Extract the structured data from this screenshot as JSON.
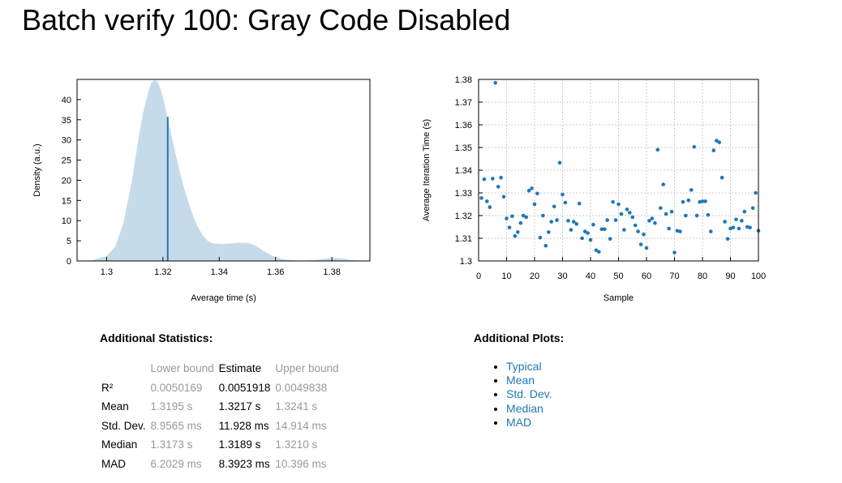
{
  "title": "Batch verify 100: Gray Code Disabled",
  "colors": {
    "accent": "#1f78b4",
    "pdf_fill": "#c6dbea",
    "grid": "#cccccc",
    "muted": "#999999"
  },
  "chart_data": [
    {
      "type": "area",
      "name": "pdf",
      "xlabel": "Average time (s)",
      "ylabel": "Density (a.u.)",
      "xlim": [
        1.2895,
        1.3935
      ],
      "ylim": [
        0,
        45
      ],
      "xticks": [
        "1.3",
        "1.32",
        "1.34",
        "1.36",
        "1.38"
      ],
      "yticks": [
        "0",
        "5",
        "10",
        "15",
        "20",
        "25",
        "30",
        "35",
        "40"
      ],
      "density": {
        "x": [
          1.2895,
          1.29,
          1.295,
          1.3,
          1.303,
          1.306,
          1.309,
          1.311,
          1.313,
          1.315,
          1.316,
          1.317,
          1.318,
          1.319,
          1.32,
          1.322,
          1.324,
          1.326,
          1.328,
          1.33,
          1.332,
          1.334,
          1.336,
          1.338,
          1.341,
          1.344,
          1.347,
          1.35,
          1.353,
          1.356,
          1.359,
          1.362,
          1.366,
          1.37,
          1.374,
          1.378,
          1.38,
          1.382,
          1.385,
          1.387,
          1.3935
        ],
        "y": [
          0,
          0.05,
          0.2,
          1.2,
          3.5,
          9.5,
          20,
          29,
          37,
          42.5,
          44.3,
          44.8,
          44.5,
          43,
          40.5,
          34.5,
          28,
          22,
          17,
          12.5,
          9,
          6.5,
          4.9,
          4.3,
          4.2,
          4.3,
          4.5,
          4.5,
          3.8,
          2.4,
          1.2,
          0.5,
          0.15,
          0.08,
          0.25,
          0.55,
          0.7,
          0.7,
          0.5,
          0.2,
          0.05
        ]
      },
      "mean": {
        "x": 1.3217,
        "y": 35.7
      }
    },
    {
      "type": "scatter",
      "name": "samples",
      "xlabel": "Sample",
      "ylabel": "Average Iteration Time (s)",
      "xlim": [
        0,
        100
      ],
      "ylim": [
        1.3,
        1.38
      ],
      "grid": true,
      "xticks": [
        "0",
        "10",
        "20",
        "30",
        "40",
        "50",
        "60",
        "70",
        "80",
        "90",
        "100"
      ],
      "yticks": [
        "1.3",
        "1.31",
        "1.32",
        "1.33",
        "1.34",
        "1.35",
        "1.36",
        "1.37",
        "1.38"
      ],
      "x": [
        1,
        2,
        3,
        4,
        5,
        6,
        7,
        8,
        9,
        10,
        11,
        12,
        13,
        14,
        15,
        16,
        17,
        18,
        19,
        20,
        21,
        22,
        23,
        24,
        25,
        26,
        27,
        28,
        29,
        30,
        31,
        32,
        33,
        34,
        35,
        36,
        37,
        38,
        39,
        40,
        41,
        42,
        43,
        44,
        45,
        46,
        47,
        48,
        49,
        50,
        51,
        52,
        53,
        54,
        55,
        56,
        57,
        58,
        59,
        60,
        61,
        62,
        63,
        64,
        65,
        66,
        67,
        68,
        69,
        70,
        71,
        72,
        73,
        74,
        75,
        76,
        77,
        78,
        79,
        80,
        81,
        82,
        83,
        84,
        85,
        86,
        87,
        88,
        89,
        90,
        91,
        92,
        93,
        94,
        95,
        96,
        97,
        98,
        99,
        100
      ],
      "y": [
        1.3277,
        1.336,
        1.3263,
        1.3237,
        1.3363,
        1.3785,
        1.3327,
        1.3367,
        1.3283,
        1.3187,
        1.3147,
        1.3197,
        1.311,
        1.3127,
        1.3167,
        1.32,
        1.3193,
        1.331,
        1.332,
        1.325,
        1.3297,
        1.3103,
        1.32,
        1.3067,
        1.3127,
        1.3173,
        1.324,
        1.318,
        1.3433,
        1.3293,
        1.3257,
        1.3177,
        1.3137,
        1.3173,
        1.3163,
        1.3253,
        1.31,
        1.313,
        1.3123,
        1.3093,
        1.316,
        1.3047,
        1.304,
        1.314,
        1.314,
        1.318,
        1.3097,
        1.326,
        1.318,
        1.325,
        1.3207,
        1.3137,
        1.3227,
        1.3213,
        1.3193,
        1.3157,
        1.313,
        1.3073,
        1.3117,
        1.3057,
        1.3177,
        1.3187,
        1.3167,
        1.349,
        1.3233,
        1.3337,
        1.3207,
        1.3143,
        1.3217,
        1.3037,
        1.3133,
        1.313,
        1.326,
        1.32,
        1.3267,
        1.3313,
        1.3503,
        1.32,
        1.326,
        1.3263,
        1.3263,
        1.3203,
        1.313,
        1.3487,
        1.353,
        1.3523,
        1.3367,
        1.3173,
        1.3097,
        1.3143,
        1.3147,
        1.3183,
        1.3143,
        1.3177,
        1.3217,
        1.315,
        1.3147,
        1.3233,
        1.33,
        1.3133
      ]
    }
  ],
  "stats": {
    "heading": "Additional Statistics:",
    "columns": [
      "",
      "Lower bound",
      "Estimate",
      "Upper bound"
    ],
    "rows": [
      {
        "label": "R²",
        "lower": "0.0050169",
        "estimate": "0.0051918",
        "upper": "0.0049838"
      },
      {
        "label": "Mean",
        "lower": "1.3195 s",
        "estimate": "1.3217 s",
        "upper": "1.3241 s"
      },
      {
        "label": "Std. Dev.",
        "lower": "8.9565 ms",
        "estimate": "11.928 ms",
        "upper": "14.914 ms"
      },
      {
        "label": "Median",
        "lower": "1.3173 s",
        "estimate": "1.3189 s",
        "upper": "1.3210 s"
      },
      {
        "label": "MAD",
        "lower": "6.2029 ms",
        "estimate": "8.3923 ms",
        "upper": "10.396 ms"
      }
    ]
  },
  "plots": {
    "heading": "Additional Plots:",
    "links": [
      "Typical",
      "Mean",
      "Std. Dev.",
      "Median",
      "MAD"
    ]
  }
}
